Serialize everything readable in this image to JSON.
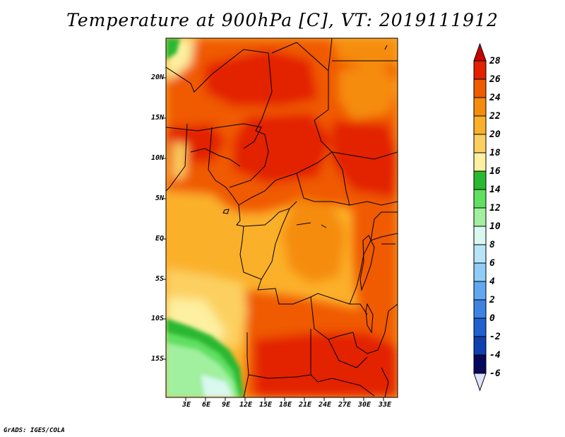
{
  "title": "Temperature at 900hPa [C], VT: 2019111912",
  "credit": "GrADS: IGES/COLA",
  "map": {
    "region_lon": [
      0,
      35
    ],
    "region_lat": [
      -20,
      24
    ],
    "lat_labels": [
      "20N",
      "15N",
      "10N",
      "5N",
      "EQ",
      "5S",
      "10S",
      "15S"
    ],
    "lat_values": [
      20,
      15,
      10,
      5,
      0,
      -5,
      -10,
      -15
    ],
    "lon_labels": [
      "3E",
      "6E",
      "9E",
      "12E",
      "15E",
      "18E",
      "21E",
      "24E",
      "27E",
      "30E",
      "33E"
    ],
    "lon_values": [
      3,
      6,
      9,
      12,
      15,
      18,
      21,
      24,
      27,
      30,
      33
    ]
  },
  "colorbar": {
    "labels": [
      "28",
      "26",
      "24",
      "22",
      "20",
      "18",
      "16",
      "14",
      "12",
      "10",
      "8",
      "6",
      "4",
      "2",
      "0",
      "-2",
      "-4",
      "-6"
    ],
    "colors": [
      "#c80000",
      "#e32000",
      "#f05a00",
      "#f58c0a",
      "#fbb02a",
      "#fcd060",
      "#fdf0a0",
      "#2ab830",
      "#60e060",
      "#a0f0a0",
      "#d8f8f0",
      "#b8e4fa",
      "#90ccf8",
      "#60a8f0",
      "#3c84e0",
      "#2060d0",
      "#1040b0",
      "#0a1a88",
      "#06085c"
    ],
    "below_color": "#e0e4ff"
  }
}
